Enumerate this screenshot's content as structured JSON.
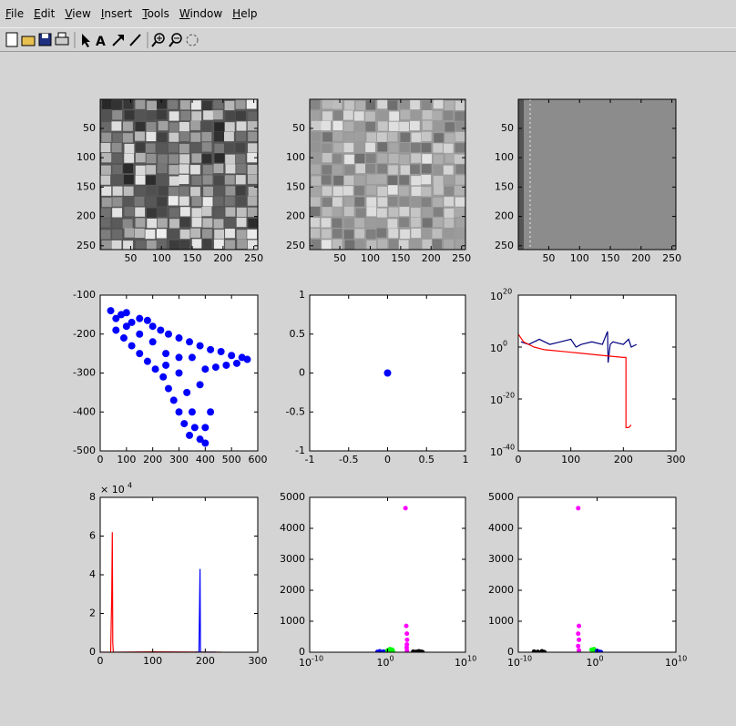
{
  "menu": [
    "File",
    "Edit",
    "View",
    "Insert",
    "Tools",
    "Window",
    "Help"
  ],
  "chart_data": [
    {
      "type": "image",
      "xlim": [
        0.5,
        256.5
      ],
      "ylim": [
        0.5,
        256.5
      ],
      "yreverse": true,
      "xticks": [
        50,
        100,
        150,
        200,
        250
      ],
      "yticks": [
        50,
        100,
        150,
        200,
        250
      ]
    },
    {
      "type": "image",
      "xlim": [
        0.5,
        256.5
      ],
      "ylim": [
        0.5,
        256.5
      ],
      "yreverse": true,
      "xticks": [
        50,
        100,
        150,
        200,
        250
      ],
      "yticks": [
        50,
        100,
        150,
        200,
        250
      ]
    },
    {
      "type": "image",
      "xlim": [
        0.5,
        256.5
      ],
      "ylim": [
        0.5,
        256.5
      ],
      "yreverse": true,
      "xticks": [
        50,
        100,
        150,
        200,
        250
      ],
      "yticks": [
        50,
        100,
        150,
        200,
        250
      ]
    },
    {
      "type": "scatter",
      "xlim": [
        0,
        600
      ],
      "ylim": [
        -500,
        -100
      ],
      "xticks": [
        0,
        100,
        200,
        300,
        400,
        500,
        600
      ],
      "yticks": [
        -500,
        -400,
        -300,
        -200,
        -100
      ],
      "color": "#0000ff",
      "x": [
        40,
        60,
        80,
        100,
        120,
        150,
        180,
        200,
        230,
        260,
        300,
        340,
        380,
        420,
        460,
        500,
        540,
        560,
        520,
        480,
        440,
        400,
        60,
        90,
        120,
        150,
        180,
        210,
        240,
        260,
        280,
        300,
        320,
        340,
        360,
        380,
        400,
        400,
        350,
        330,
        300,
        250,
        200,
        150,
        100,
        350,
        300,
        250,
        380,
        420
      ],
      "values": [
        -140,
        -160,
        -150,
        -145,
        -170,
        -160,
        -165,
        -180,
        -190,
        -200,
        -210,
        -220,
        -230,
        -240,
        -245,
        -255,
        -260,
        -265,
        -275,
        -280,
        -285,
        -290,
        -190,
        -210,
        -230,
        -250,
        -270,
        -290,
        -310,
        -340,
        -370,
        -400,
        -430,
        -460,
        -440,
        -470,
        -480,
        -440,
        -400,
        -350,
        -300,
        -250,
        -220,
        -200,
        -180,
        -260,
        -260,
        -280,
        -330,
        -400
      ]
    },
    {
      "type": "scatter",
      "xlim": [
        -1,
        1
      ],
      "ylim": [
        -1,
        1
      ],
      "xticks": [
        -1,
        -0.5,
        0,
        0.5,
        1
      ],
      "yticks": [
        -1,
        -0.5,
        0,
        0.5,
        1
      ],
      "color": "#0000ff",
      "x": [
        0
      ],
      "values": [
        0
      ]
    },
    {
      "type": "line",
      "xlim": [
        0,
        300
      ],
      "ylim": [
        1e-40,
        1e+20
      ],
      "yscale": "log",
      "xticks": [
        0,
        100,
        200,
        300
      ],
      "yticks": [
        {
          "value": 1e-40,
          "label": "10",
          "exp": "-40"
        },
        {
          "value": 1e-20,
          "label": "10",
          "exp": "-20"
        },
        {
          "value": 1,
          "label": "10",
          "exp": "0"
        },
        {
          "value": 1e+20,
          "label": "10",
          "exp": "20"
        }
      ],
      "series": [
        {
          "color": "#00007f",
          "x": [
            5,
            20,
            40,
            60,
            80,
            100,
            110,
            120,
            140,
            160,
            170,
            171,
            175,
            180,
            200,
            210,
            215,
            225
          ],
          "values": [
            100,
            10,
            1000,
            10,
            100,
            1000,
            1,
            10,
            100,
            10,
            1000000.0,
            1e-06,
            10,
            100,
            10,
            1000,
            1,
            10
          ]
        },
        {
          "color": "#ff0000",
          "x": [
            0,
            10,
            30,
            50,
            100,
            150,
            200,
            205,
            205,
            210,
            215
          ],
          "values": [
            100000.0,
            100,
            1,
            0.1,
            0.01,
            0.001,
            0.0001,
            0.0001,
            1e-31,
            1e-31,
            1e-30
          ]
        }
      ]
    },
    {
      "type": "line",
      "xlim": [
        0,
        300
      ],
      "ylim": [
        0,
        80000
      ],
      "xticks": [
        0,
        100,
        200,
        300
      ],
      "yticks": [
        {
          "value": 0,
          "label": "0"
        },
        {
          "value": 20000,
          "label": "2"
        },
        {
          "value": 40000,
          "label": "4"
        },
        {
          "value": 60000,
          "label": "6"
        },
        {
          "value": 80000,
          "label": "8"
        }
      ],
      "y_multiplier": {
        "label": "× 10",
        "exp": "4"
      },
      "series": [
        {
          "color": "#ff0000",
          "x": [
            0,
            20,
            22,
            23,
            24,
            25,
            26,
            100,
            230
          ],
          "values": [
            0,
            0,
            30000,
            62000,
            5000,
            0,
            0,
            200,
            0
          ]
        },
        {
          "color": "#0000ff",
          "x": [
            180,
            188,
            189,
            190,
            191,
            192,
            220
          ],
          "values": [
            0,
            0,
            21000,
            43000,
            0,
            0,
            0
          ]
        }
      ]
    },
    {
      "type": "scatter",
      "xlim": [
        1e-10,
        10000000000.0
      ],
      "xscale": "log",
      "ylim": [
        0,
        5000
      ],
      "xticks": [
        {
          "value": 1e-10,
          "label": "10",
          "exp": "-10"
        },
        {
          "value": 1,
          "label": "10",
          "exp": "0"
        },
        {
          "value": 10000000000.0,
          "label": "10",
          "exp": "10"
        }
      ],
      "yticks": [
        0,
        1000,
        2000,
        3000,
        4000,
        5000
      ],
      "series": [
        {
          "color": "#0000ff",
          "x": [
            0.05,
            0.1,
            0.3,
            0.5
          ],
          "values": [
            10,
            30,
            20,
            5
          ]
        },
        {
          "color": "#00ff00",
          "x": [
            1,
            2,
            3,
            4,
            5
          ],
          "values": [
            60,
            100,
            40,
            80,
            20
          ]
        },
        {
          "color": "#ff00ff",
          "x": [
            200,
            250,
            300,
            320,
            300,
            280,
            310
          ],
          "values": [
            4650,
            850,
            600,
            400,
            250,
            150,
            50
          ]
        },
        {
          "color": "#000000",
          "x": [
            2000,
            5000,
            10000,
            20000,
            30000
          ],
          "values": [
            20,
            10,
            30,
            15,
            5
          ]
        }
      ]
    },
    {
      "type": "scatter",
      "xlim": [
        1e-10,
        10000000000.0
      ],
      "xscale": "log",
      "ylim": [
        0,
        5000
      ],
      "xticks": [
        {
          "value": 1e-10,
          "label": "10",
          "exp": "-10"
        },
        {
          "value": 1,
          "label": "10",
          "exp": "0"
        },
        {
          "value": 10000000000.0,
          "label": "10",
          "exp": "10"
        }
      ],
      "yticks": [
        0,
        1000,
        2000,
        3000,
        4000,
        5000
      ],
      "series": [
        {
          "color": "#000000",
          "x": [
            1e-08,
            3e-08,
            1e-07,
            2e-07
          ],
          "values": [
            20,
            10,
            30,
            5
          ]
        },
        {
          "color": "#ff00ff",
          "x": [
            0.004,
            0.005,
            0.004,
            0.005,
            0.004,
            0.005
          ],
          "values": [
            4650,
            850,
            600,
            400,
            200,
            60
          ]
        },
        {
          "color": "#00ff00",
          "x": [
            0.2,
            0.3,
            0.4,
            0.5
          ],
          "values": [
            80,
            60,
            100,
            30
          ]
        },
        {
          "color": "#0000ff",
          "x": [
            1,
            1.5,
            2,
            3
          ],
          "values": [
            40,
            20,
            10,
            5
          ]
        }
      ]
    }
  ]
}
